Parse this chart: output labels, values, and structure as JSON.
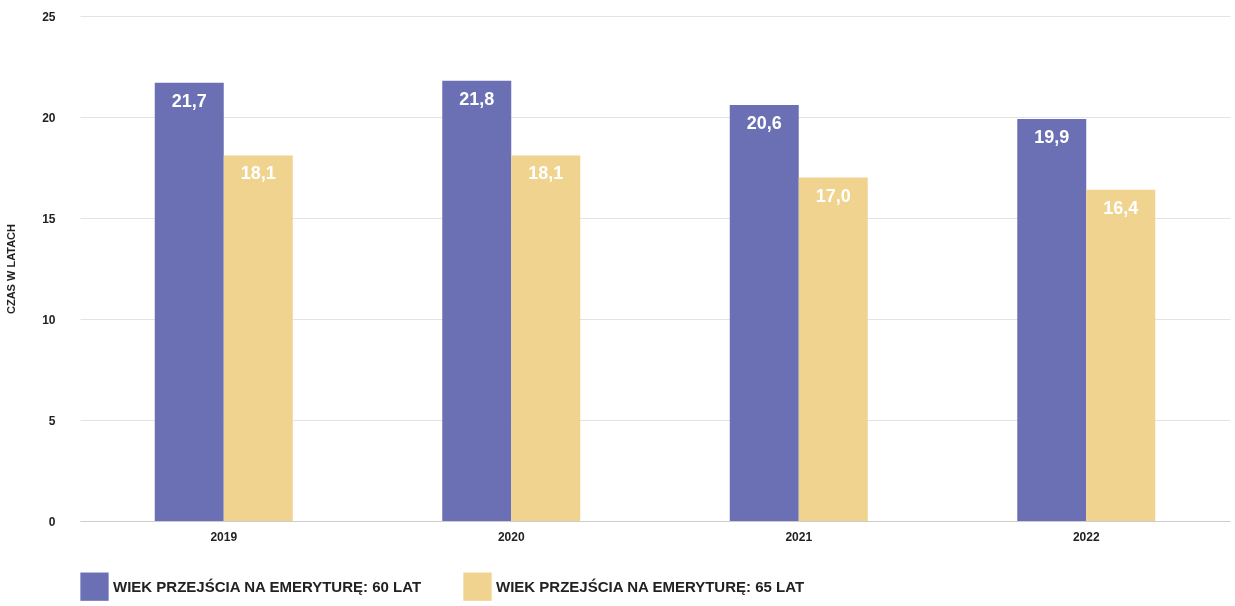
{
  "chart_data": {
    "type": "bar",
    "ylabel": "CZAS W LATACH",
    "categories": [
      "2019",
      "2020",
      "2021",
      "2022"
    ],
    "series": [
      {
        "name": "WIEK PRZEJŚCIA NA EMERYTURĘ: 60 LAT",
        "color": "#6b70b5",
        "values": [
          21.7,
          21.8,
          20.6,
          19.9
        ],
        "value_labels": [
          "21,7",
          "21,8",
          "20,6",
          "19,9"
        ]
      },
      {
        "name": "WIEK PRZEJŚCIA NA EMERYTURĘ: 65 LAT",
        "color": "#f0d38f",
        "values": [
          18.1,
          18.1,
          17.0,
          16.4
        ],
        "value_labels": [
          "18,1",
          "18,1",
          "17,0",
          "16,4"
        ]
      }
    ],
    "ylim": [
      0,
      25
    ],
    "yticks": [
      0,
      5,
      10,
      15,
      20,
      25
    ],
    "grid": "y",
    "legend": "bottom"
  }
}
